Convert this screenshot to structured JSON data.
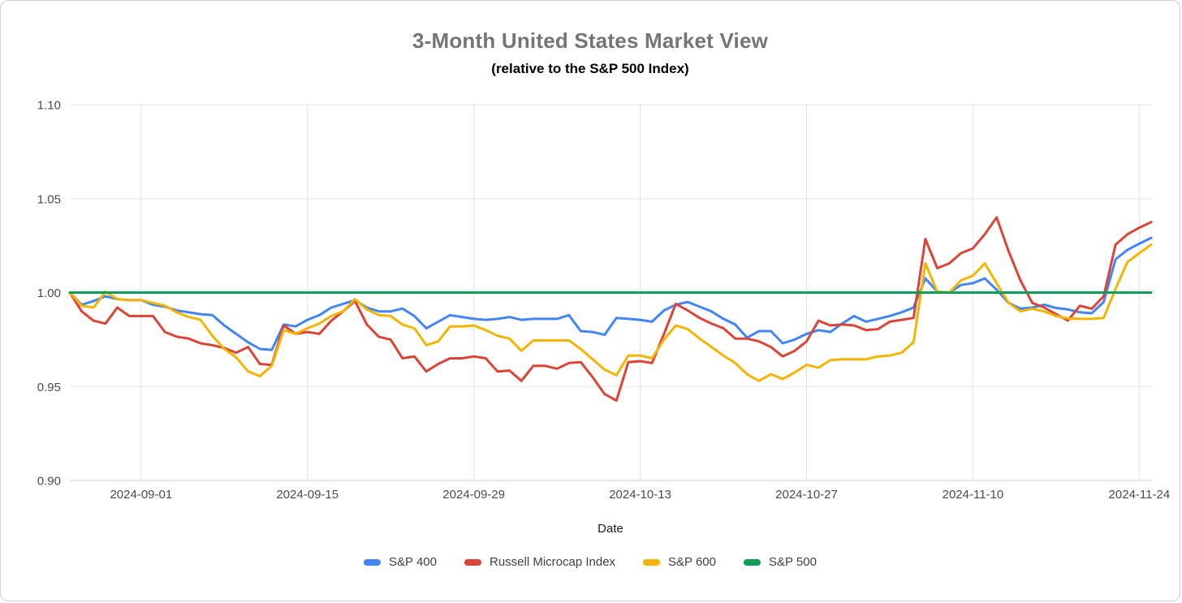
{
  "chart_data": {
    "type": "line",
    "title": "3-Month United States Market View",
    "subtitle": "(relative to the S&P 500 Index)",
    "xlabel": "Date",
    "ylabel": "",
    "ylim": [
      0.9,
      1.1
    ],
    "yticks": [
      "0.90",
      "0.95",
      "1.00",
      "1.05",
      "1.10"
    ],
    "grid": true,
    "legend_position": "bottom",
    "x_start": "2024-08-26",
    "x_end": "2024-11-25",
    "x_freq": "daily",
    "x_count": 92,
    "xticks": [
      "2024-09-01",
      "2024-09-15",
      "2024-09-29",
      "2024-10-13",
      "2024-10-27",
      "2024-11-10",
      "2024-11-24"
    ],
    "axis_colors": {
      "grid": "#e3e3e3",
      "baseline": "#cfcfcf",
      "tick_text": "#4b4b4b"
    },
    "series": [
      {
        "name": "S&P 400",
        "color": "#4285F4",
        "values": [
          1.0,
          0.9935,
          0.9955,
          0.998,
          0.9965,
          0.996,
          0.996,
          0.9935,
          0.9925,
          0.9905,
          0.9895,
          0.9885,
          0.988,
          0.9825,
          0.978,
          0.9735,
          0.97,
          0.9695,
          0.983,
          0.982,
          0.9855,
          0.988,
          0.992,
          0.994,
          0.996,
          0.992,
          0.99,
          0.99,
          0.9915,
          0.9875,
          0.981,
          0.9845,
          0.988,
          0.987,
          0.986,
          0.9855,
          0.986,
          0.987,
          0.9855,
          0.986,
          0.986,
          0.986,
          0.988,
          0.9795,
          0.979,
          0.9775,
          0.9865,
          0.986,
          0.9855,
          0.9845,
          0.9905,
          0.9935,
          0.995,
          0.9925,
          0.99,
          0.986,
          0.983,
          0.976,
          0.9795,
          0.9795,
          0.973,
          0.975,
          0.978,
          0.98,
          0.979,
          0.9835,
          0.9875,
          0.9845,
          0.986,
          0.9875,
          0.9895,
          0.992,
          1.0075,
          1.0005,
          1.0,
          1.004,
          1.005,
          1.0075,
          1.0015,
          0.9945,
          0.9915,
          0.992,
          0.9935,
          0.9918,
          0.991,
          0.9895,
          0.989,
          0.995,
          1.0177,
          1.0227,
          1.026,
          1.0291
        ]
      },
      {
        "name": "Russell Microcap Index",
        "color": "#DB4437",
        "values": [
          1.0,
          0.99,
          0.985,
          0.9835,
          0.992,
          0.9875,
          0.9875,
          0.9875,
          0.979,
          0.9765,
          0.9755,
          0.973,
          0.972,
          0.9705,
          0.968,
          0.971,
          0.962,
          0.9615,
          0.9825,
          0.978,
          0.979,
          0.978,
          0.985,
          0.99,
          0.9955,
          0.983,
          0.9765,
          0.975,
          0.965,
          0.966,
          0.958,
          0.962,
          0.965,
          0.965,
          0.966,
          0.965,
          0.958,
          0.9585,
          0.953,
          0.961,
          0.961,
          0.9595,
          0.9625,
          0.963,
          0.955,
          0.946,
          0.9425,
          0.963,
          0.9635,
          0.9625,
          0.978,
          0.994,
          0.9905,
          0.9865,
          0.9835,
          0.981,
          0.9755,
          0.9755,
          0.974,
          0.971,
          0.966,
          0.969,
          0.974,
          0.985,
          0.9825,
          0.983,
          0.9825,
          0.98,
          0.9805,
          0.9845,
          0.9855,
          0.9865,
          1.0285,
          1.013,
          1.0155,
          1.021,
          1.0235,
          1.031,
          1.04,
          1.022,
          1.0065,
          0.9945,
          0.992,
          0.9885,
          0.9851,
          0.993,
          0.9914,
          0.998,
          1.0255,
          1.031,
          1.0345,
          1.0375
        ]
      },
      {
        "name": "S&P 600",
        "color": "#F4B400",
        "values": [
          1.0,
          0.993,
          0.992,
          1.0005,
          0.9965,
          0.996,
          0.996,
          0.9945,
          0.993,
          0.9895,
          0.987,
          0.9855,
          0.977,
          0.97,
          0.9655,
          0.958,
          0.9555,
          0.961,
          0.98,
          0.978,
          0.981,
          0.9835,
          0.9875,
          0.99,
          0.9965,
          0.991,
          0.988,
          0.9875,
          0.983,
          0.981,
          0.972,
          0.974,
          0.982,
          0.982,
          0.9825,
          0.98,
          0.977,
          0.9755,
          0.969,
          0.9745,
          0.9745,
          0.9745,
          0.9745,
          0.97,
          0.9645,
          0.959,
          0.956,
          0.9665,
          0.9665,
          0.965,
          0.975,
          0.9825,
          0.9805,
          0.9755,
          0.971,
          0.9665,
          0.9625,
          0.9565,
          0.953,
          0.9565,
          0.954,
          0.9575,
          0.9615,
          0.96,
          0.964,
          0.9645,
          0.9645,
          0.9645,
          0.966,
          0.9665,
          0.968,
          0.9735,
          1.0155,
          1.0005,
          1.0,
          1.0065,
          1.009,
          1.0155,
          1.005,
          0.9945,
          0.99,
          0.9914,
          0.99,
          0.9875,
          0.9862,
          0.986,
          0.986,
          0.9865,
          1.002,
          1.0162,
          1.021,
          1.0255
        ]
      },
      {
        "name": "S&P 500",
        "color": "#0F9D58",
        "constant": 1.0
      }
    ]
  }
}
